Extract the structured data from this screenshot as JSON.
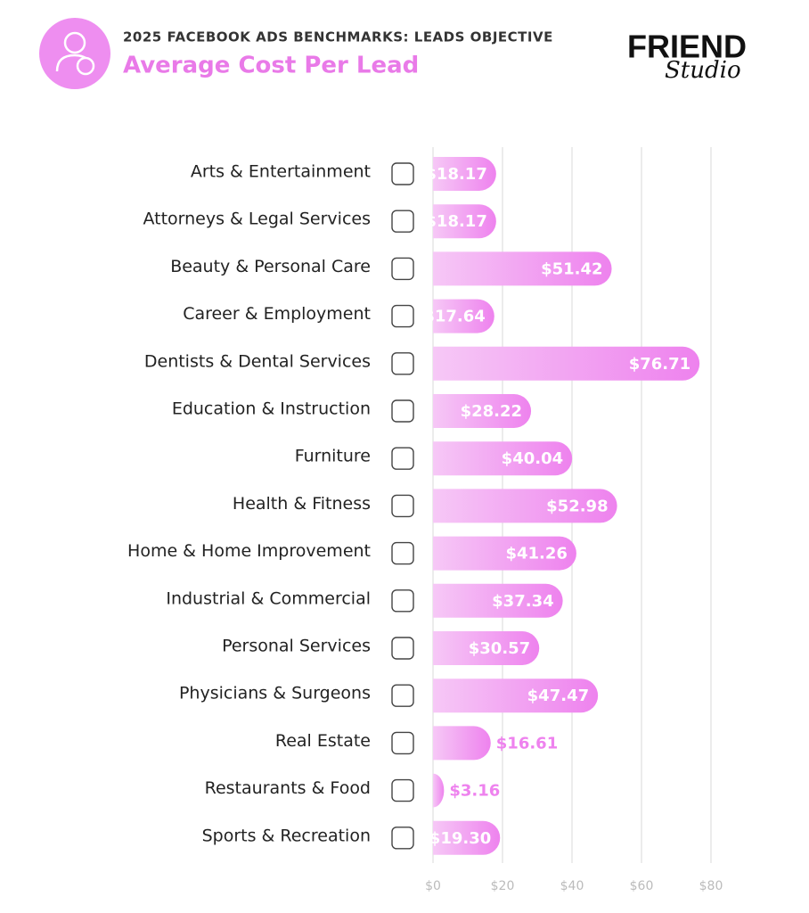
{
  "chart_data": {
    "type": "bar",
    "orientation": "horizontal",
    "title": "2025 FACEBOOK ADS BENCHMARKS: LEADS OBJECTIVE",
    "subtitle": "Average Cost Per Lead",
    "logo": {
      "main": "FRIEND",
      "script": "Studio"
    },
    "categories": [
      "Arts & Entertainment",
      "Attorneys & Legal Services",
      "Beauty & Personal Care",
      "Career & Employment",
      "Dentists & Dental Services",
      "Education & Instruction",
      "Furniture",
      "Health & Fitness",
      "Home & Home Improvement",
      "Industrial & Commercial",
      "Personal Services",
      "Physicians & Surgeons",
      "Real Estate",
      "Restaurants & Food",
      "Sports & Recreation"
    ],
    "values": [
      18.17,
      18.17,
      51.42,
      17.64,
      76.71,
      28.22,
      40.04,
      52.98,
      41.26,
      37.34,
      30.57,
      47.47,
      16.61,
      3.16,
      19.3
    ],
    "value_labels": [
      "$18.17",
      "$18.17",
      "$51.42",
      "$17.64",
      "$76.71",
      "$28.22",
      "$40.04",
      "$52.98",
      "$41.26",
      "$37.34",
      "$30.57",
      "$47.47",
      "$16.61",
      "$3.16",
      "$19.30"
    ],
    "color": "#ee82ee",
    "xlim": [
      0,
      80
    ],
    "xticks": [
      {
        "value": 0,
        "label": "$0"
      },
      {
        "value": 20,
        "label": "$20"
      },
      {
        "value": 40,
        "label": "$40"
      },
      {
        "value": 60,
        "label": "$60"
      },
      {
        "value": 80,
        "label": "$80"
      }
    ],
    "grid": true
  }
}
